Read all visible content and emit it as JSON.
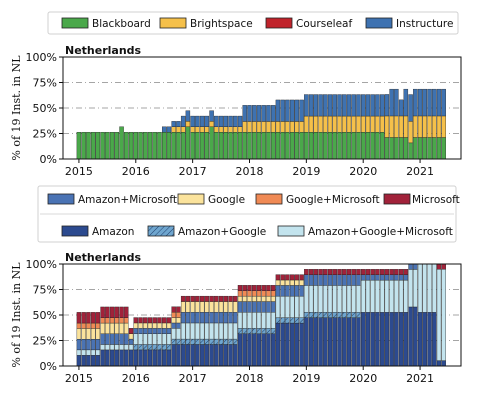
{
  "chart_data": [
    {
      "type": "bar",
      "stacked": true,
      "title": "Netherlands",
      "ylabel": "% of 19 Inst. in NL",
      "xlabel": "",
      "ylim": [
        0,
        100
      ],
      "x_ticks": [
        "2015",
        "2016",
        "2017",
        "2018",
        "2019",
        "2020",
        "2021"
      ],
      "y_ticks": [
        "0%",
        "25%",
        "50%",
        "75%",
        "100%"
      ],
      "grid": "horizontal dashed at 25% intervals",
      "legend_position": "top",
      "x_start": 2015.0,
      "x_end": 2021.45,
      "series": [
        {
          "name": "Blackboard",
          "color": "#4aa84a",
          "breakpoints": [
            [
              2015.0,
              26.3
            ],
            [
              2015.7,
              26.3
            ],
            [
              2015.75,
              31.6
            ],
            [
              2015.8,
              26.3
            ],
            [
              2016.4,
              26.3
            ],
            [
              2016.45,
              26.3
            ],
            [
              2016.6,
              26.3
            ],
            [
              2016.8,
              26.3
            ],
            [
              2016.85,
              31.6
            ],
            [
              2017.0,
              26.3
            ],
            [
              2017.3,
              31.6
            ],
            [
              2017.35,
              26.3
            ],
            [
              2017.6,
              26.3
            ],
            [
              2017.85,
              26.3
            ],
            [
              2018.5,
              26.3
            ],
            [
              2018.9,
              26.3
            ],
            [
              2019.0,
              26.3
            ],
            [
              2019.2,
              26.3
            ],
            [
              2020.35,
              21.1
            ],
            [
              2020.8,
              15.8
            ],
            [
              2020.9,
              21.1
            ]
          ]
        },
        {
          "name": "Brightspace",
          "color": "#f5c04a",
          "breakpoints": [
            [
              2015.0,
              0
            ],
            [
              2016.4,
              0
            ],
            [
              2016.6,
              5.3
            ],
            [
              2016.95,
              5.3
            ],
            [
              2017.0,
              5.3
            ],
            [
              2017.85,
              10.5
            ],
            [
              2018.9,
              10.5
            ],
            [
              2019.0,
              15.8
            ],
            [
              2019.2,
              15.8
            ],
            [
              2020.35,
              21.1
            ],
            [
              2020.8,
              21.1
            ],
            [
              2020.9,
              21.1
            ]
          ]
        },
        {
          "name": "Courseleaf",
          "color": "#c0232b",
          "breakpoints": [
            [
              2015.0,
              0
            ]
          ]
        },
        {
          "name": "Instructure",
          "color": "#3e72b1",
          "breakpoints": [
            [
              2015.0,
              0
            ],
            [
              2016.4,
              0
            ],
            [
              2016.45,
              5.3
            ],
            [
              2016.6,
              5.3
            ],
            [
              2016.8,
              10.5
            ],
            [
              2016.95,
              10.5
            ],
            [
              2017.6,
              10.5
            ],
            [
              2017.85,
              15.8
            ],
            [
              2018.5,
              21.1
            ],
            [
              2018.9,
              21.1
            ],
            [
              2019.0,
              21.1
            ],
            [
              2019.2,
              21.1
            ],
            [
              2020.35,
              21.1
            ],
            [
              2020.5,
              26.3
            ],
            [
              2020.6,
              15.8
            ],
            [
              2020.7,
              26.3
            ],
            [
              2020.8,
              26.3
            ],
            [
              2020.9,
              26.3
            ]
          ]
        }
      ]
    },
    {
      "type": "bar",
      "stacked": true,
      "title": "Netherlands",
      "ylabel": "% of 19 Inst. in NL",
      "xlabel": "",
      "ylim": [
        0,
        100
      ],
      "x_ticks": [
        "2015",
        "2016",
        "2017",
        "2018",
        "2019",
        "2020",
        "2021"
      ],
      "y_ticks": [
        "0%",
        "25%",
        "50%",
        "75%",
        "100%"
      ],
      "grid": "horizontal dashed at 25% intervals",
      "legend_position": "top",
      "x_start": 2015.0,
      "x_end": 2021.45,
      "series": [
        {
          "name": "Amazon",
          "color": "#2c4a8f",
          "breakpoints": [
            [
              2015.0,
              10.5
            ],
            [
              2015.4,
              15.8
            ],
            [
              2015.9,
              15.8
            ],
            [
              2016.6,
              21.1
            ],
            [
              2017.0,
              21.1
            ],
            [
              2017.8,
              31.6
            ],
            [
              2018.5,
              42.1
            ],
            [
              2019.0,
              47.4
            ],
            [
              2020.0,
              52.6
            ],
            [
              2020.8,
              57.9
            ],
            [
              2021.0,
              52.6
            ],
            [
              2021.3,
              5.3
            ]
          ]
        },
        {
          "name": "Amazon+Google",
          "color": "#6fa6cf",
          "hatch": true,
          "breakpoints": [
            [
              2015.0,
              0
            ],
            [
              2016.0,
              5.3
            ],
            [
              2016.8,
              5.3
            ],
            [
              2017.8,
              5.3
            ],
            [
              2019.0,
              5.3
            ],
            [
              2020.0,
              0
            ],
            [
              2021.3,
              0
            ]
          ]
        },
        {
          "name": "Amazon+Google+Microsoft",
          "color": "#c3e4ee",
          "breakpoints": [
            [
              2015.0,
              5.3
            ],
            [
              2015.4,
              5.3
            ],
            [
              2016.0,
              10.5
            ],
            [
              2016.8,
              15.8
            ],
            [
              2017.8,
              15.8
            ],
            [
              2018.5,
              21.1
            ],
            [
              2019.0,
              26.3
            ],
            [
              2020.0,
              31.6
            ],
            [
              2020.8,
              36.8
            ],
            [
              2021.0,
              47.4
            ],
            [
              2021.3,
              89.5
            ]
          ]
        },
        {
          "name": "Amazon+Microsoft",
          "color": "#4a73b4",
          "breakpoints": [
            [
              2015.0,
              10.5
            ],
            [
              2015.4,
              10.5
            ],
            [
              2015.9,
              5.3
            ],
            [
              2016.6,
              5.3
            ],
            [
              2016.8,
              10.5
            ],
            [
              2017.8,
              10.5
            ],
            [
              2018.5,
              10.5
            ],
            [
              2019.0,
              10.5
            ],
            [
              2020.0,
              5.3
            ],
            [
              2021.0,
              0
            ]
          ]
        },
        {
          "name": "Google",
          "color": "#fbe39c",
          "breakpoints": [
            [
              2015.0,
              10.5
            ],
            [
              2015.4,
              10.5
            ],
            [
              2015.9,
              5.3
            ],
            [
              2016.6,
              5.3
            ],
            [
              2016.8,
              10.5
            ],
            [
              2017.8,
              5.3
            ],
            [
              2018.5,
              5.3
            ],
            [
              2019.0,
              0
            ],
            [
              2020.0,
              0
            ]
          ]
        },
        {
          "name": "Google+Microsoft",
          "color": "#f08a55",
          "breakpoints": [
            [
              2015.0,
              5.3
            ],
            [
              2015.4,
              5.3
            ],
            [
              2015.9,
              0
            ],
            [
              2016.6,
              5.3
            ],
            [
              2016.8,
              0
            ],
            [
              2017.8,
              5.3
            ],
            [
              2018.5,
              0
            ],
            [
              2021.0,
              0
            ]
          ]
        },
        {
          "name": "Microsoft",
          "color": "#a1223a",
          "breakpoints": [
            [
              2015.0,
              10.5
            ],
            [
              2015.4,
              10.5
            ],
            [
              2015.9,
              5.3
            ],
            [
              2016.6,
              5.3
            ],
            [
              2016.8,
              5.3
            ],
            [
              2017.8,
              5.3
            ],
            [
              2018.5,
              5.3
            ],
            [
              2019.0,
              5.3
            ],
            [
              2020.0,
              5.3
            ],
            [
              2020.8,
              5.3
            ],
            [
              2021.0,
              0
            ],
            [
              2021.3,
              5.3
            ]
          ]
        }
      ]
    }
  ]
}
